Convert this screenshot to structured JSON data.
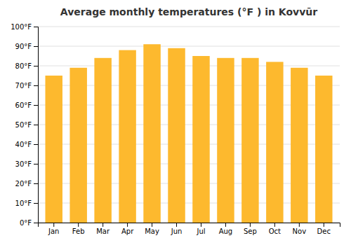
{
  "chart_data": {
    "type": "bar",
    "title": "Average monthly temperatures (°F ) in Kovvūr",
    "categories": [
      "Jan",
      "Feb",
      "Mar",
      "Apr",
      "May",
      "Jun",
      "Jul",
      "Aug",
      "Sep",
      "Oct",
      "Nov",
      "Dec"
    ],
    "values": [
      75,
      79,
      84,
      88,
      91,
      89,
      85,
      84,
      84,
      82,
      79,
      75
    ],
    "color": "#FDB92E",
    "ylim": [
      0,
      100
    ],
    "yticks": [
      {
        "value": 0,
        "label": "0°F"
      },
      {
        "value": 10,
        "label": "10°F"
      },
      {
        "value": 20,
        "label": "20°F"
      },
      {
        "value": 30,
        "label": "30°F"
      },
      {
        "value": 40,
        "label": "40°F"
      },
      {
        "value": 50,
        "label": "50°F"
      },
      {
        "value": 60,
        "label": "60°F"
      },
      {
        "value": 70,
        "label": "70°F"
      },
      {
        "value": 80,
        "label": "80°F"
      },
      {
        "value": 90,
        "label": "90°F"
      },
      {
        "value": 100,
        "label": "100°F"
      }
    ],
    "grid": true
  }
}
